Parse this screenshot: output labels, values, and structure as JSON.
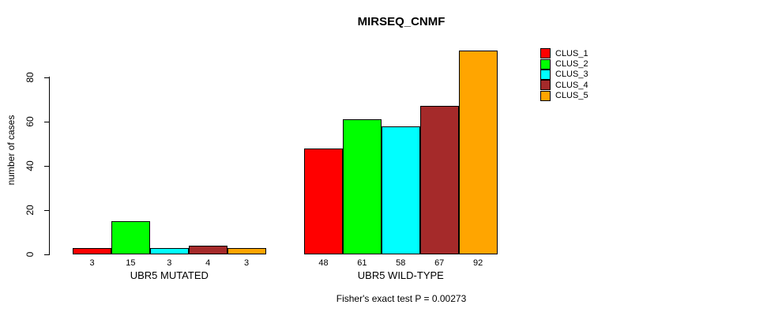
{
  "title": "MIRSEQ_CNMF",
  "caption": "Fisher's exact test P = 0.00273",
  "y_axis": {
    "label": "number of cases",
    "ticks": [
      0,
      20,
      40,
      60,
      80
    ]
  },
  "legend": {
    "items": [
      {
        "label": "CLUS_1",
        "color": "#FF0000"
      },
      {
        "label": "CLUS_2",
        "color": "#00FF00"
      },
      {
        "label": "CLUS_3",
        "color": "#00FFFF"
      },
      {
        "label": "CLUS_4",
        "color": "#A52A2A"
      },
      {
        "label": "CLUS_5",
        "color": "#FFA500"
      }
    ]
  },
  "chart_data": {
    "type": "bar",
    "title": "MIRSEQ_CNMF",
    "xlabel": "",
    "ylabel": "number of cases",
    "ylim": [
      0,
      95
    ],
    "yticks": [
      0,
      20,
      40,
      60,
      80
    ],
    "grid": false,
    "legend_position": "top-right",
    "categories": [
      "UBR5 MUTATED",
      "UBR5 WILD-TYPE"
    ],
    "series": [
      {
        "name": "CLUS_1",
        "color": "#FF0000",
        "values": [
          3,
          48
        ]
      },
      {
        "name": "CLUS_2",
        "color": "#00FF00",
        "values": [
          15,
          61
        ]
      },
      {
        "name": "CLUS_3",
        "color": "#00FFFF",
        "values": [
          3,
          58
        ]
      },
      {
        "name": "CLUS_4",
        "color": "#A52A2A",
        "values": [
          4,
          67
        ]
      },
      {
        "name": "CLUS_5",
        "color": "#FFA500",
        "values": [
          3,
          92
        ]
      }
    ],
    "bar_value_labels": [
      [
        3,
        15,
        3,
        4,
        3
      ],
      [
        48,
        61,
        58,
        67,
        92
      ]
    ],
    "annotation": "Fisher's exact test P = 0.00273"
  }
}
